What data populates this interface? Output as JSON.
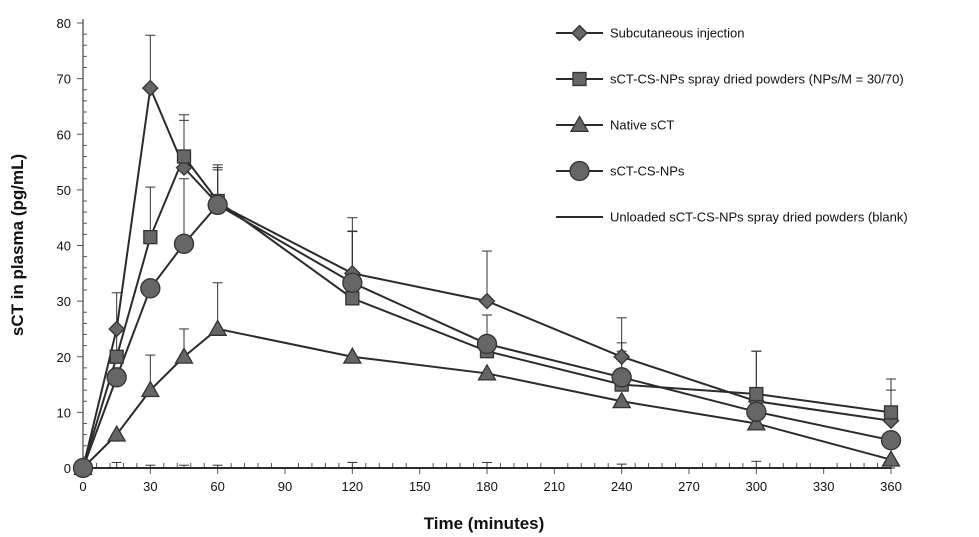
{
  "chart_data": {
    "type": "line",
    "xlabel": "Time (minutes)",
    "ylabel": "sCT in plasma (pg/mL)",
    "xlim": [
      0,
      360
    ],
    "ylim": [
      0,
      80
    ],
    "xticks": [
      0,
      30,
      60,
      90,
      120,
      150,
      180,
      210,
      240,
      270,
      300,
      330,
      360
    ],
    "yticks": [
      0,
      10,
      20,
      30,
      40,
      50,
      60,
      70,
      80
    ],
    "legend_position": "top-right",
    "series": [
      {
        "name": "Subcutaneous injection",
        "marker": "diamond",
        "x": [
          0,
          15,
          30,
          45,
          60,
          120,
          180,
          240,
          300,
          360
        ],
        "y": [
          0,
          25,
          68.3,
          54,
          47.5,
          35,
          30,
          20,
          12,
          8.5
        ],
        "err": [
          0,
          6.5,
          9.5,
          8.5,
          6.5,
          10,
          9,
          7,
          9,
          5.5
        ]
      },
      {
        "name": "sCT-CS-NPs spray dried powders (NPs/M = 30/70)",
        "marker": "square",
        "x": [
          0,
          15,
          30,
          45,
          60,
          120,
          180,
          240,
          300,
          360
        ],
        "y": [
          0,
          20,
          41.5,
          56,
          48,
          30.5,
          21,
          15,
          13.3,
          10
        ],
        "err": [
          0,
          5,
          9,
          7.5,
          6.5,
          12,
          6.5,
          6,
          7.7,
          6
        ]
      },
      {
        "name": "Native sCT",
        "marker": "triangle",
        "x": [
          0,
          15,
          30,
          45,
          60,
          120,
          180,
          240,
          300,
          360
        ],
        "y": [
          0,
          6,
          14,
          20,
          25,
          20,
          17,
          12,
          8,
          1.5
        ],
        "err": [
          0,
          0,
          6.3,
          5,
          8.3,
          0,
          0,
          0,
          0,
          0
        ]
      },
      {
        "name": "sCT-CS-NPs",
        "marker": "circle",
        "x": [
          0,
          15,
          30,
          45,
          60,
          120,
          180,
          240,
          300,
          360
        ],
        "y": [
          0,
          16.3,
          32.3,
          40.3,
          47.3,
          33.3,
          22.3,
          16.3,
          10.1,
          5
        ],
        "err": [
          0,
          0,
          0,
          11.7,
          6.3,
          9.3,
          5.2,
          6.2,
          0,
          0
        ]
      },
      {
        "name": "Unloaded sCT-CS-NPs spray dried powders (blank)",
        "marker": "none",
        "x": [
          0,
          15,
          30,
          45,
          60,
          120,
          180,
          240,
          300,
          360
        ],
        "y": [
          0,
          0,
          0,
          0,
          0,
          0,
          0,
          0,
          0,
          0
        ],
        "err": [
          0,
          1,
          0.5,
          0.5,
          0.5,
          1,
          1,
          0.7,
          1.2,
          0.5
        ]
      }
    ]
  }
}
